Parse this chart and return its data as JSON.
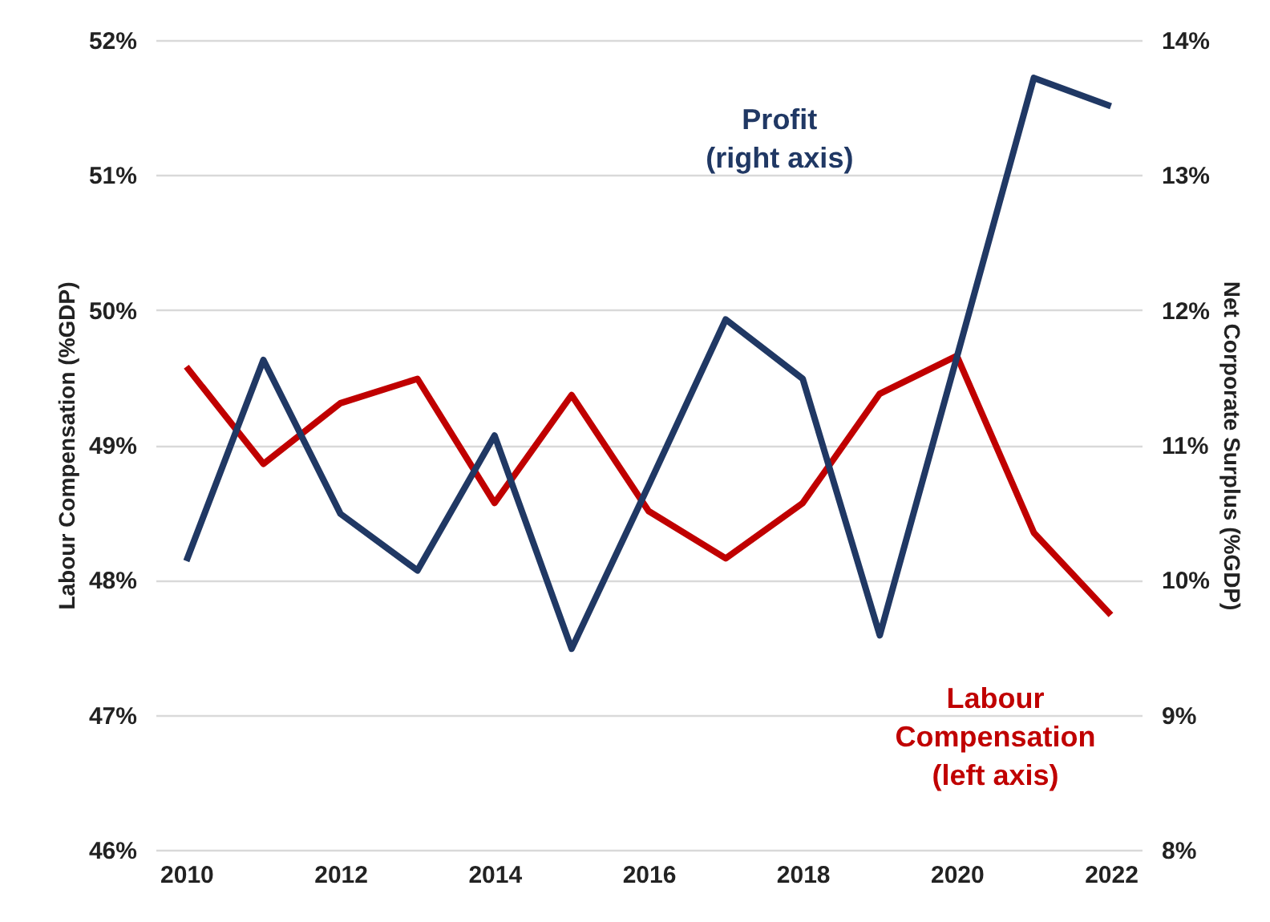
{
  "chart_data": {
    "type": "line",
    "ylabel": "Labour Compensation (%GDP)",
    "y2label": "Net Corporate Surplus (%GDP)",
    "x": [
      2010,
      2011,
      2012,
      2013,
      2014,
      2015,
      2016,
      2017,
      2018,
      2019,
      2020,
      2021,
      2022
    ],
    "xlim": [
      2009.6,
      2022.4
    ],
    "xticks": [
      2010,
      2012,
      2014,
      2016,
      2018,
      2020,
      2022
    ],
    "ylim": [
      46,
      52
    ],
    "yticks": [
      {
        "value": 46,
        "label": "46%"
      },
      {
        "value": 47,
        "label": "47%"
      },
      {
        "value": 48,
        "label": "48%"
      },
      {
        "value": 49,
        "label": "49%"
      },
      {
        "value": 50,
        "label": "50%"
      },
      {
        "value": 51,
        "label": "51%"
      },
      {
        "value": 52,
        "label": "52%"
      }
    ],
    "y2lim": [
      8,
      14
    ],
    "y2ticks": [
      {
        "value": 8,
        "label": "8%"
      },
      {
        "value": 9,
        "label": "9%"
      },
      {
        "value": 10,
        "label": "10%"
      },
      {
        "value": 11,
        "label": "11%"
      },
      {
        "value": 12,
        "label": "12%"
      },
      {
        "value": 13,
        "label": "13%"
      },
      {
        "value": 14,
        "label": "14%"
      }
    ],
    "grid": "y",
    "marker": "none",
    "line_style": "solid",
    "series": [
      {
        "name": "Labour\nCompensation\n(left axis)",
        "color": "#c00000",
        "values": [
          49.58,
          48.86,
          49.31,
          49.49,
          48.57,
          49.37,
          48.51,
          48.16,
          48.57,
          49.38,
          49.66,
          48.35,
          47.74
        ]
      },
      {
        "name": "Profit\n(right axis)",
        "color": "#203864",
        "axis": "y2",
        "values": [
          10.14,
          11.63,
          10.49,
          10.07,
          11.07,
          9.49,
          10.7,
          11.93,
          11.49,
          9.59,
          11.65,
          13.72,
          13.51
        ]
      }
    ]
  }
}
